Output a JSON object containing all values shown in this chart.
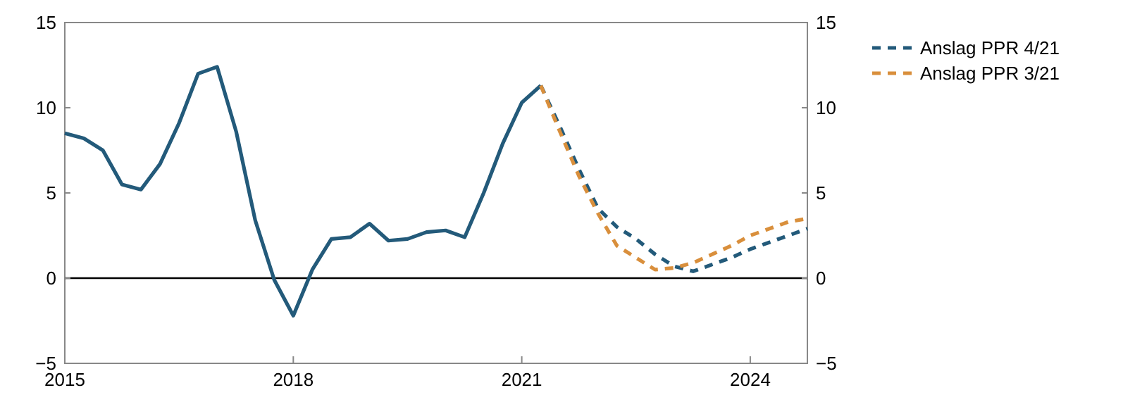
{
  "chart_data": {
    "type": "line",
    "xlim": [
      2015,
      2024.75
    ],
    "xticks": [
      2015,
      2018,
      2021,
      2024
    ],
    "ylim": [
      -5,
      15
    ],
    "yticks": [
      {
        "value": -5,
        "label": "−5"
      },
      0,
      5,
      10,
      15
    ],
    "y2lim": [
      -5,
      15
    ],
    "y2ticks": [
      {
        "value": -5,
        "label": "−5"
      },
      0,
      5,
      10,
      15
    ],
    "grid": false,
    "legend": "right",
    "ref_lines": [
      {
        "axis": "y",
        "value": 0,
        "color": "#000000"
      }
    ],
    "series": [
      {
        "color": "#235a7a",
        "line_style": "solid",
        "x": [
          2015,
          2015.25,
          2015.5,
          2015.75,
          2016,
          2016.25,
          2016.5,
          2016.75,
          2017,
          2017.25,
          2017.5,
          2017.75,
          2018,
          2018.25,
          2018.5,
          2018.75,
          2019,
          2019.25,
          2019.5,
          2019.75,
          2020,
          2020.25,
          2020.5,
          2020.75,
          2021,
          2021.25
        ],
        "values": [
          8.5,
          8.2,
          7.5,
          5.5,
          5.2,
          6.7,
          9.1,
          12.0,
          12.4,
          8.6,
          3.4,
          -0.1,
          -2.2,
          0.5,
          2.3,
          2.4,
          3.2,
          2.2,
          2.3,
          2.7,
          2.8,
          2.4,
          5.0,
          7.9,
          10.3,
          11.3
        ]
      },
      {
        "name": "Anslag PPR 4/21",
        "color": "#235a7a",
        "line_style": "dashed",
        "x": [
          2021.25,
          2021.5,
          2021.75,
          2022,
          2022.25,
          2022.5,
          2022.75,
          2023,
          2023.25,
          2023.5,
          2023.75,
          2024,
          2024.25,
          2024.5,
          2024.75
        ],
        "values": [
          11.3,
          8.9,
          6.4,
          4.1,
          3.0,
          2.3,
          1.4,
          0.7,
          0.4,
          0.8,
          1.2,
          1.7,
          2.1,
          2.5,
          2.9
        ]
      },
      {
        "name": "Anslag PPR 3/21",
        "color": "#d98f3c",
        "line_style": "dashed",
        "x": [
          2021.25,
          2021.5,
          2021.75,
          2022,
          2022.25,
          2022.5,
          2022.75,
          2023,
          2023.25,
          2023.5,
          2023.75,
          2024,
          2024.25,
          2024.5,
          2024.75
        ],
        "values": [
          11.3,
          8.6,
          6.0,
          3.8,
          1.9,
          1.2,
          0.5,
          0.6,
          0.9,
          1.4,
          1.9,
          2.5,
          2.9,
          3.3,
          3.5
        ]
      }
    ]
  }
}
